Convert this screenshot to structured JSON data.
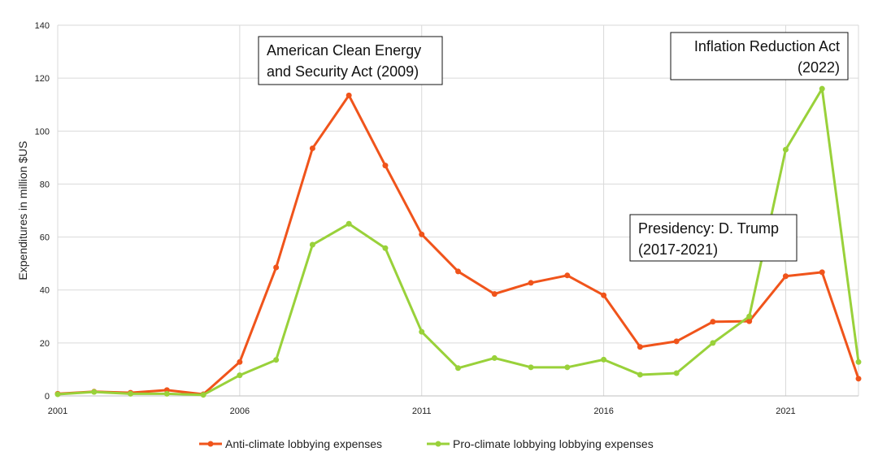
{
  "chart_data": {
    "type": "line",
    "x": [
      2001,
      2002,
      2003,
      2004,
      2005,
      2006,
      2007,
      2008,
      2009,
      2010,
      2011,
      2012,
      2013,
      2014,
      2015,
      2016,
      2017,
      2018,
      2019,
      2020,
      2021,
      2022,
      2023
    ],
    "xticks": [
      "2001",
      "2006",
      "2011",
      "2016",
      "2021"
    ],
    "xlim": [
      2001,
      2023
    ],
    "ylabel": "Expenditures in million $US",
    "ylim": [
      0,
      140
    ],
    "yticks": [
      "0",
      "20",
      "40",
      "60",
      "80",
      "100",
      "120",
      "140"
    ],
    "grid": true,
    "legend": "bottom",
    "series": [
      {
        "name": "Anti-climate lobbying expenses",
        "color": "#f0541b",
        "values": [
          0.8,
          1.6,
          1.2,
          2.2,
          0.6,
          12.8,
          48.5,
          93.5,
          113.5,
          87,
          61,
          47,
          38.5,
          42.7,
          45.5,
          38,
          18.5,
          20.6,
          28,
          28.2,
          45.2,
          46.7,
          6.5
        ]
      },
      {
        "name": "Pro-climate lobbying lobbying expenses",
        "color": "#99d13a",
        "values": [
          0.6,
          1.5,
          0.8,
          0.8,
          0.4,
          7.8,
          13.6,
          57.1,
          65,
          55.8,
          24.2,
          10.5,
          14.3,
          10.8,
          10.8,
          13.7,
          8,
          8.6,
          20,
          30,
          93,
          116,
          12.8
        ]
      }
    ],
    "annotations": [
      {
        "id": "acesa",
        "lines": [
          "American Clean Energy",
          "and Security Act (2009)"
        ],
        "align": "left"
      },
      {
        "id": "trump",
        "lines": [
          "Presidency: D. Trump",
          "(2017-2021)"
        ],
        "align": "left"
      },
      {
        "id": "ira",
        "lines": [
          "Inflation Reduction Act",
          "(2022)"
        ],
        "align": "right"
      }
    ]
  }
}
